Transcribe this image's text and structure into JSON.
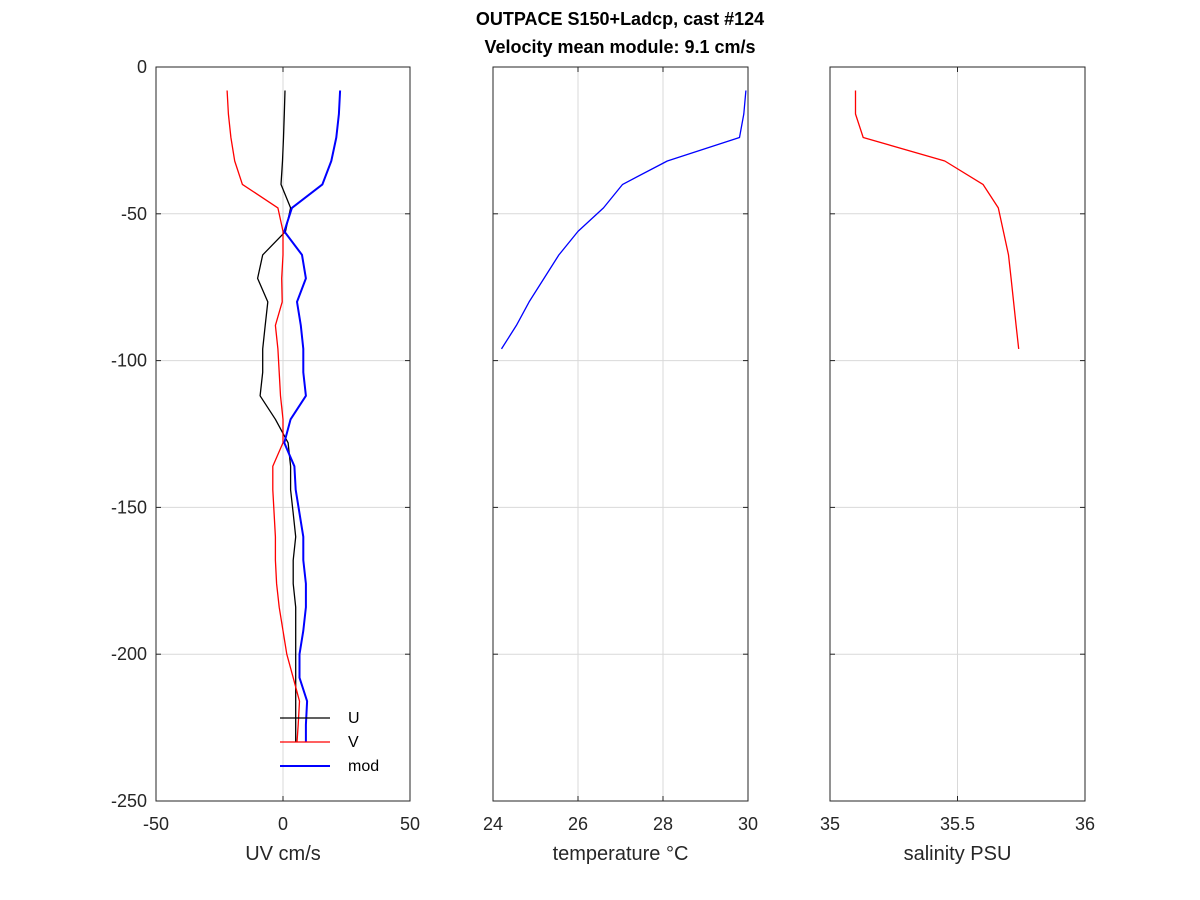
{
  "figure": {
    "title_line1": "OUTPACE S150+Ladcp, cast #124",
    "title_line2": "Velocity mean module:  9.1 cm/s"
  },
  "chart_data": [
    {
      "type": "line",
      "xlabel": "UV cm/s",
      "ylabel": "",
      "xlim": [
        -50,
        50
      ],
      "ylim": [
        -250,
        0
      ],
      "xticks": [
        -50,
        0,
        50
      ],
      "yticks": [
        0,
        -50,
        -100,
        -150,
        -200,
        -250
      ],
      "grid": true,
      "legend": "bottom",
      "series": [
        {
          "name": "U",
          "color": "#000000",
          "depth": [
            -8,
            -16,
            -24,
            -32,
            -40,
            -48,
            -56,
            -64,
            -72,
            -80,
            -88,
            -96,
            -104,
            -112,
            -120,
            -128,
            -136,
            -144,
            -152,
            -160,
            -168,
            -176,
            -184,
            -192,
            -200,
            -208,
            -216,
            -224,
            -230
          ],
          "values": [
            0.8,
            0.5,
            0.2,
            -0.2,
            -0.8,
            3,
            1,
            -8,
            -10,
            -6,
            -7,
            -8,
            -8,
            -9,
            -3,
            2,
            3,
            3,
            4,
            5,
            4,
            4,
            5,
            5,
            5,
            5,
            5,
            5,
            5
          ]
        },
        {
          "name": "V",
          "color": "#ff0000",
          "depth": [
            -8,
            -16,
            -24,
            -32,
            -40,
            -48,
            -56,
            -64,
            -72,
            -80,
            -88,
            -96,
            -104,
            -112,
            -120,
            -128,
            -136,
            -144,
            -152,
            -160,
            -168,
            -176,
            -184,
            -192,
            -200,
            -208,
            -216,
            -224,
            -230
          ],
          "values": [
            -22,
            -21.5,
            -20.5,
            -19,
            -16,
            -2,
            0,
            0,
            -0.5,
            -0.3,
            -3,
            -2,
            -1.5,
            -1,
            0,
            0,
            -4,
            -4,
            -3.5,
            -3,
            -3,
            -2.5,
            -1.5,
            0,
            1.5,
            4,
            6.5,
            6,
            5.5
          ]
        },
        {
          "name": "mod",
          "color": "#0000ff",
          "depth": [
            -8,
            -16,
            -24,
            -32,
            -40,
            -48,
            -56,
            -64,
            -72,
            -80,
            -88,
            -96,
            -104,
            -112,
            -120,
            -128,
            -136,
            -144,
            -152,
            -160,
            -168,
            -176,
            -184,
            -192,
            -200,
            -208,
            -216,
            -224,
            -230
          ],
          "values": [
            22.5,
            22,
            21,
            19,
            15.5,
            3.5,
            0.5,
            7.5,
            9,
            5.5,
            7,
            8,
            8,
            9,
            3,
            0.5,
            4.5,
            5,
            6.5,
            8,
            8,
            9,
            9,
            8,
            6.5,
            6.5,
            9.5,
            9,
            9
          ]
        }
      ]
    },
    {
      "type": "line",
      "xlabel": "temperature °C",
      "xlim": [
        24,
        30
      ],
      "ylim": [
        -250,
        0
      ],
      "xticks": [
        24,
        26,
        28,
        30
      ],
      "grid": true,
      "series": [
        {
          "color": "#0000ff",
          "depth": [
            -8,
            -16,
            -24,
            -32,
            -40,
            -48,
            -56,
            -64,
            -72,
            -80,
            -88,
            -96
          ],
          "x": [
            29.95,
            29.9,
            29.8,
            28.1,
            27.05,
            26.6,
            26.0,
            25.55,
            25.2,
            24.85,
            24.55,
            24.2
          ]
        }
      ]
    },
    {
      "type": "line",
      "xlabel": "salinity PSU",
      "xlim": [
        35,
        36
      ],
      "ylim": [
        -250,
        0
      ],
      "xticks": [
        35,
        35.5,
        36
      ],
      "grid": true,
      "series": [
        {
          "color": "#ff0000",
          "depth": [
            -8,
            -16,
            -24,
            -32,
            -40,
            -48,
            -56,
            -64,
            -72,
            -80,
            -88,
            -96
          ],
          "x": [
            35.1,
            35.1,
            35.13,
            35.45,
            35.6,
            35.66,
            35.68,
            35.7,
            35.71,
            35.72,
            35.73,
            35.74
          ]
        }
      ]
    }
  ]
}
